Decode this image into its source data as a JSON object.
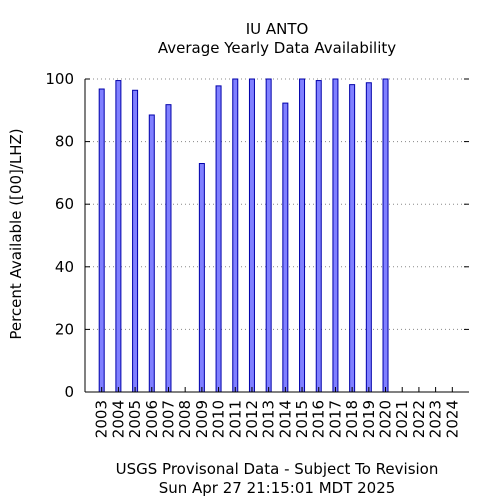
{
  "chart_data": {
    "type": "bar",
    "title": "IU ANTO",
    "subtitle": "Average Yearly Data Availability",
    "xlabel": "USGS Provisonal Data - Subject To Revision",
    "footer": "Sun Apr 27 21:15:01 MDT 2025",
    "ylabel": "Percent Available ([00]/LHZ)",
    "ylim": [
      0,
      100
    ],
    "yticks": [
      0,
      20,
      40,
      60,
      80,
      100
    ],
    "grid": "horizontal dotted",
    "categories": [
      "2003",
      "2004",
      "2005",
      "2006",
      "2007",
      "2008",
      "2009",
      "2010",
      "2011",
      "2012",
      "2013",
      "2014",
      "2015",
      "2016",
      "2017",
      "2018",
      "2019",
      "2020",
      "2021",
      "2022",
      "2023",
      "2024"
    ],
    "values": [
      96.8,
      99.5,
      96.4,
      88.5,
      91.8,
      0,
      73,
      97.8,
      100,
      100,
      100,
      92.3,
      100,
      99.5,
      100,
      98.2,
      98.8,
      100,
      0,
      0,
      0,
      0
    ],
    "colors": {
      "bar_fill": "#8080ff",
      "bar_stroke": "#0000aa",
      "grid": "#888888"
    }
  }
}
